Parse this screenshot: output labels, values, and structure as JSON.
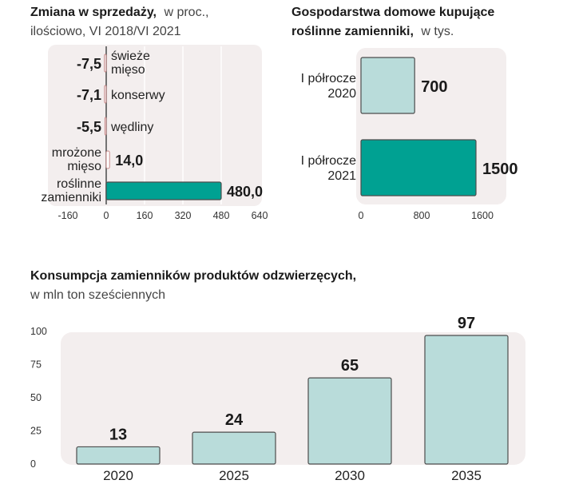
{
  "colors": {
    "panel": "#f3eeee",
    "teal": "#00a192",
    "light": "#b9dcda",
    "outline": "#4d4d4d",
    "neg_outline": "#c88a8a"
  },
  "chart_data": [
    {
      "type": "bar",
      "orientation": "horizontal",
      "title": "Zmiana w sprzedaży,",
      "title_suffix": "w proc.,",
      "subtitle": "ilościowo, VI 2018/VI 2021",
      "categories": [
        {
          "name": "świeże mięso",
          "lines": [
            "świeże",
            "mięso"
          ],
          "side": "right"
        },
        {
          "name": "konserwy",
          "lines": [
            "konserwy"
          ],
          "side": "right"
        },
        {
          "name": "wędliny",
          "lines": [
            "wędliny"
          ],
          "side": "right"
        },
        {
          "name": "mrożone mięso",
          "lines": [
            "mrożone",
            "mięso"
          ],
          "side": "left"
        },
        {
          "name": "roślinne zamienniki",
          "lines": [
            "roślinne",
            "zamienniki"
          ],
          "side": "left"
        }
      ],
      "values": [
        -7.5,
        -7.1,
        -5.5,
        14.0,
        480.0
      ],
      "value_labels": [
        "-7,5",
        "-7,1",
        "-5,5",
        "14,0",
        "480,0"
      ],
      "xlim": [
        -160,
        640
      ],
      "xticks": [
        "-160",
        "0",
        "160",
        "320",
        "480",
        "640"
      ],
      "xtick_values": [
        -160,
        0,
        160,
        320,
        480,
        640
      ]
    },
    {
      "type": "bar",
      "orientation": "horizontal",
      "title": "Gospodarstwa domowe kupujące",
      "title2": "roślinne zamienniki,",
      "title_suffix": "w tys.",
      "categories": [
        {
          "name": "I półrocze 2020",
          "lines": [
            "I półrocze",
            "2020"
          ]
        },
        {
          "name": "I półrocze 2021",
          "lines": [
            "I półrocze",
            "2021"
          ]
        }
      ],
      "values": [
        700,
        1500
      ],
      "value_labels": [
        "700",
        "1500"
      ],
      "xlim": [
        0,
        1600
      ],
      "xticks": [
        "0",
        "800",
        "1600"
      ],
      "xtick_values": [
        0,
        800,
        1600
      ]
    },
    {
      "type": "bar",
      "orientation": "vertical",
      "title": "Konsumpcja zamienników produktów odzwierzęcych,",
      "subtitle": "w mln ton sześciennych",
      "categories": [
        "2020",
        "2025",
        "2030",
        "2035"
      ],
      "values": [
        13,
        24,
        65,
        97
      ],
      "value_labels": [
        "13",
        "24",
        "65",
        "97"
      ],
      "ylim": [
        0,
        100
      ],
      "yticks": [
        "0",
        "25",
        "50",
        "75",
        "100"
      ],
      "ytick_values": [
        0,
        25,
        50,
        75,
        100
      ]
    }
  ]
}
